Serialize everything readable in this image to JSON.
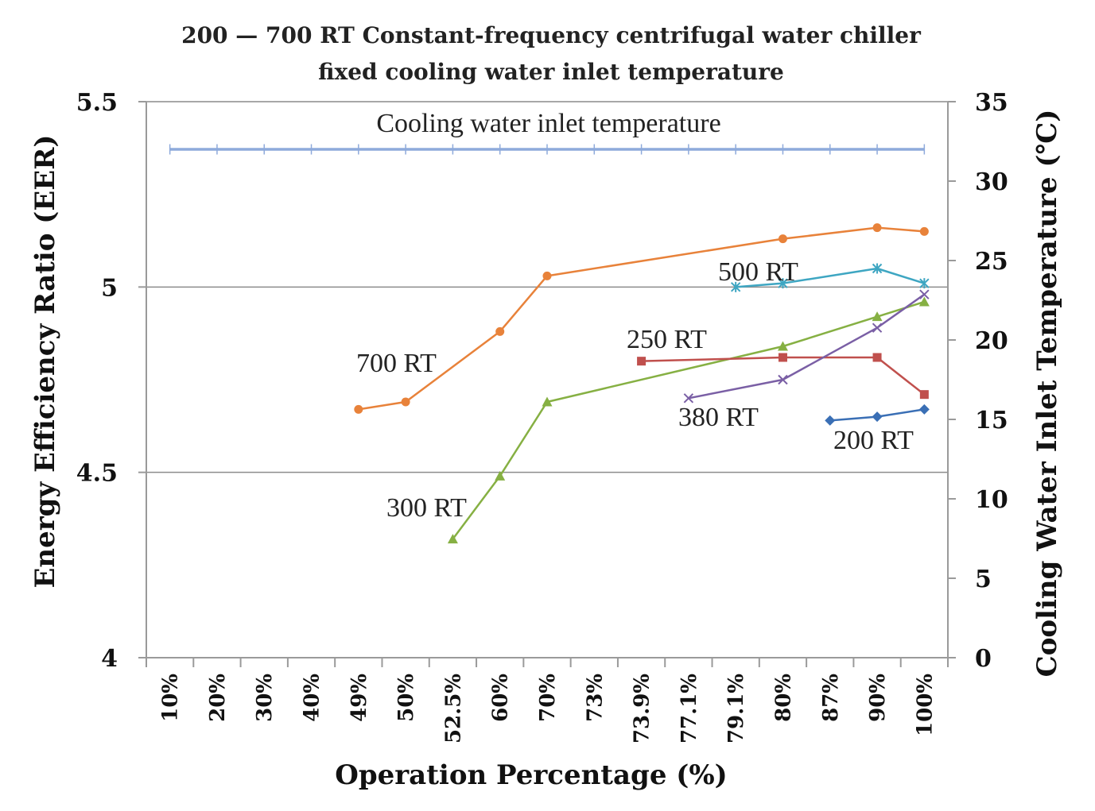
{
  "chart_data": {
    "type": "line",
    "title": "200 — 700 RT Constant-frequency centrifugal water chiller",
    "subtitle": "fixed cooling water inlet temperature",
    "xlabel": "Operation Percentage (%)",
    "ylabel": "Energy Efficiency Ratio (EER)",
    "y2label": "Cooling Water Inlet Temperature (℃)",
    "categories": [
      "10%",
      "20%",
      "30%",
      "40%",
      "49%",
      "50%",
      "52.5%",
      "60%",
      "70%",
      "73%",
      "73.9%",
      "77.1%",
      "79.1%",
      "80%",
      "87%",
      "90%",
      "100%"
    ],
    "ylim": [
      4,
      5.5
    ],
    "yticks": [
      "4",
      "4.5",
      "5",
      "5.5"
    ],
    "y2lim": [
      0,
      35
    ],
    "y2ticks": [
      "0",
      "5",
      "10",
      "15",
      "20",
      "25",
      "30",
      "35"
    ],
    "grid": true,
    "series": [
      {
        "name": "700 RT",
        "axis": "left",
        "color": "#e8823a",
        "marker": "circle",
        "points": [
          [
            "49%",
            4.67
          ],
          [
            "50%",
            4.69
          ],
          [
            "60%",
            4.88
          ],
          [
            "70%",
            5.03
          ],
          [
            "80%",
            5.13
          ],
          [
            "90%",
            5.16
          ],
          [
            "100%",
            5.15
          ]
        ]
      },
      {
        "name": "500 RT",
        "axis": "left",
        "color": "#3ea6c2",
        "marker": "star",
        "points": [
          [
            "79.1%",
            5.0
          ],
          [
            "80%",
            5.01
          ],
          [
            "90%",
            5.05
          ],
          [
            "100%",
            5.01
          ]
        ]
      },
      {
        "name": "300 RT",
        "axis": "left",
        "color": "#86b043",
        "marker": "triangle",
        "points": [
          [
            "52.5%",
            4.32
          ],
          [
            "60%",
            4.49
          ],
          [
            "70%",
            4.69
          ],
          [
            "80%",
            4.84
          ],
          [
            "90%",
            4.92
          ],
          [
            "100%",
            4.96
          ]
        ]
      },
      {
        "name": "250 RT",
        "axis": "left",
        "color": "#c0504d",
        "marker": "square",
        "points": [
          [
            "73.9%",
            4.8
          ],
          [
            "80%",
            4.81
          ],
          [
            "90%",
            4.81
          ],
          [
            "100%",
            4.71
          ]
        ]
      },
      {
        "name": "380 RT",
        "axis": "left",
        "color": "#7a5fa5",
        "marker": "x",
        "points": [
          [
            "77.1%",
            4.7
          ],
          [
            "80%",
            4.75
          ],
          [
            "90%",
            4.89
          ],
          [
            "100%",
            4.98
          ]
        ]
      },
      {
        "name": "200 RT",
        "axis": "left",
        "color": "#3a6fb5",
        "marker": "diamond",
        "points": [
          [
            "87%",
            4.64
          ],
          [
            "90%",
            4.65
          ],
          [
            "100%",
            4.67
          ]
        ]
      },
      {
        "name": "Cooling water inlet temperature",
        "axis": "right",
        "color": "#8eaadb",
        "marker": "plus",
        "points": [
          [
            "10%",
            32
          ],
          [
            "20%",
            32
          ],
          [
            "30%",
            32
          ],
          [
            "40%",
            32
          ],
          [
            "49%",
            32
          ],
          [
            "50%",
            32
          ],
          [
            "52.5%",
            32
          ],
          [
            "60%",
            32
          ],
          [
            "70%",
            32
          ],
          [
            "73%",
            32
          ],
          [
            "73.9%",
            32
          ],
          [
            "77.1%",
            32
          ],
          [
            "79.1%",
            32
          ],
          [
            "80%",
            32
          ],
          [
            "87%",
            32
          ],
          [
            "90%",
            32
          ],
          [
            "100%",
            32
          ]
        ]
      }
    ],
    "annotations": [
      "700 RT",
      "500 RT",
      "300 RT",
      "250 RT",
      "380 RT",
      "200 RT",
      "Cooling water inlet temperature"
    ]
  }
}
